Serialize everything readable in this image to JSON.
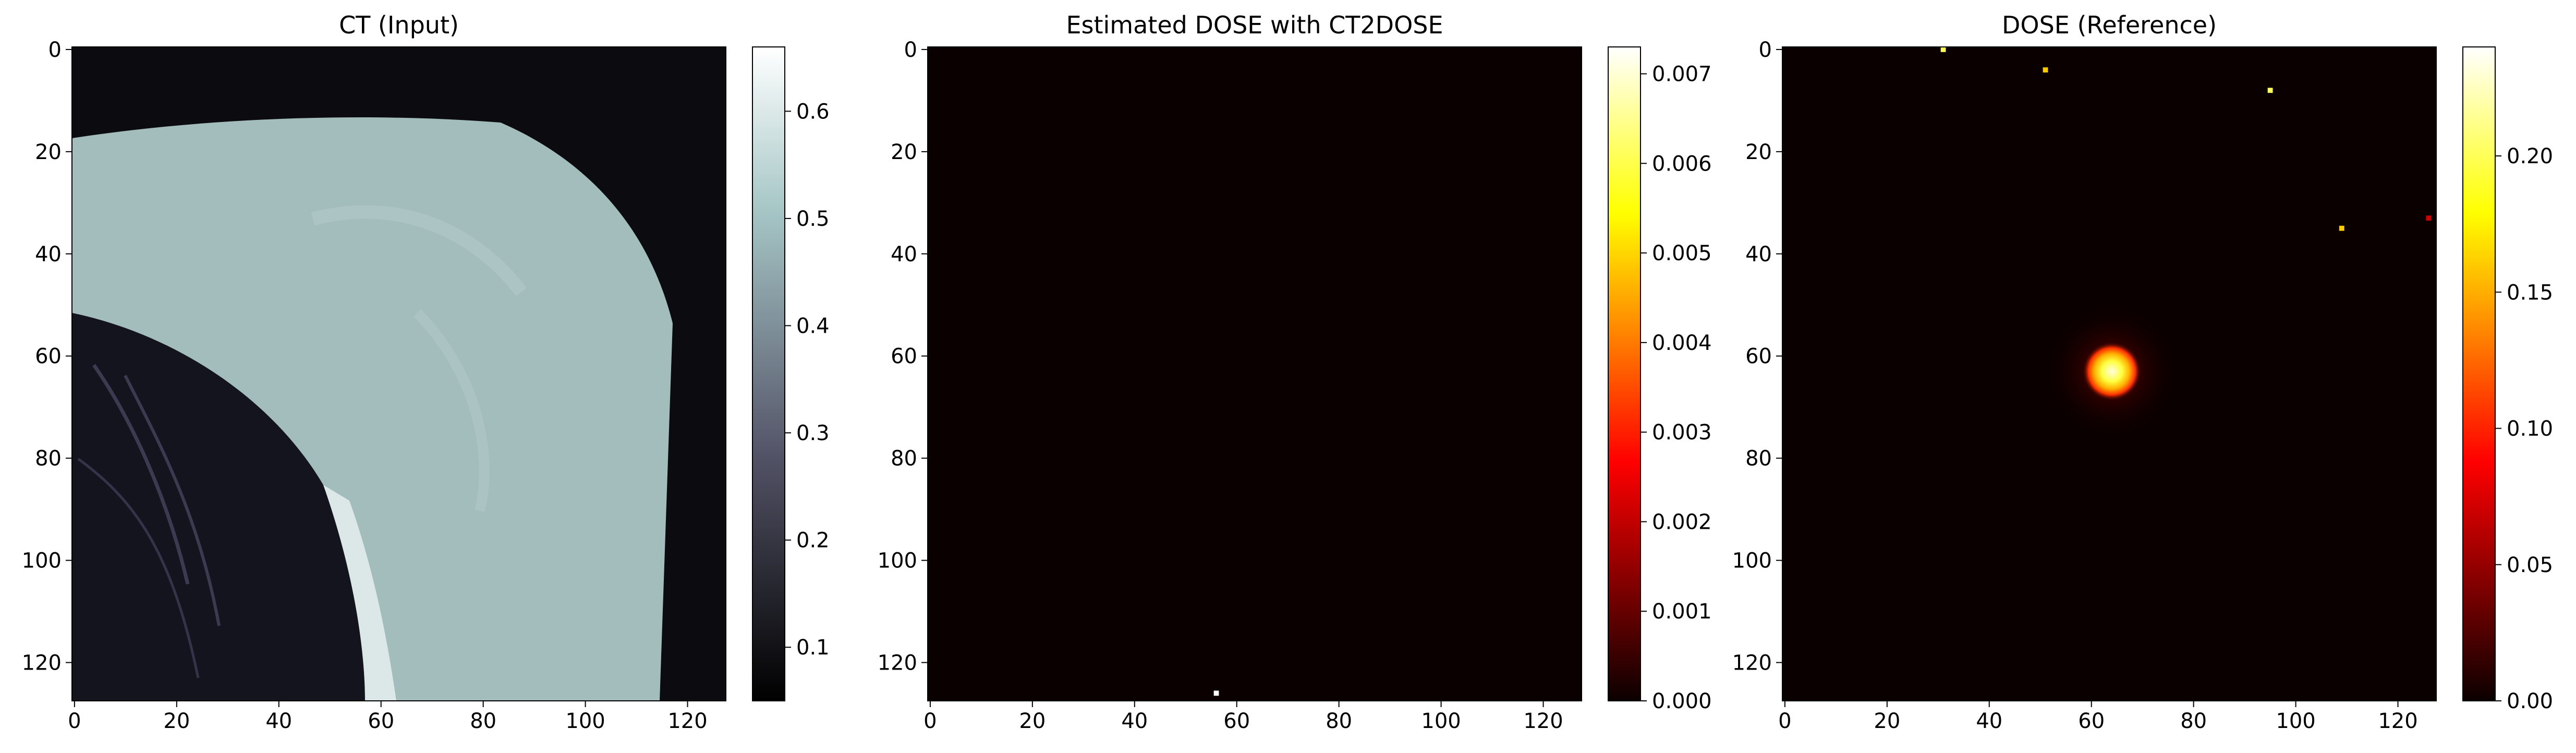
{
  "chart_data": [
    {
      "type": "heatmap",
      "title": "CT (Input)",
      "colormap": "bone",
      "xlim": [
        0,
        127
      ],
      "ylim": [
        127,
        0
      ],
      "xticks": [
        0,
        20,
        40,
        60,
        80,
        100,
        120
      ],
      "yticks": [
        0,
        20,
        40,
        60,
        80,
        100,
        120
      ],
      "colorbar": {
        "range": [
          0.05,
          0.66
        ],
        "ticks": [
          0.1,
          0.2,
          0.3,
          0.4,
          0.5,
          0.6
        ]
      },
      "image_description_values": {
        "background": 0.05,
        "tissue": 0.47,
        "lung": 0.1,
        "bone_rim": 0.62
      }
    },
    {
      "type": "heatmap",
      "title": "Estimated DOSE with CT2DOSE",
      "colormap": "hot",
      "xlim": [
        0,
        127
      ],
      "ylim": [
        127,
        0
      ],
      "xticks": [
        0,
        20,
        40,
        60,
        80,
        100,
        120
      ],
      "yticks": [
        0,
        20,
        40,
        60,
        80,
        100,
        120
      ],
      "colorbar": {
        "range": [
          0.0,
          0.0073
        ],
        "ticks": [
          "0.000",
          "0.001",
          "0.002",
          "0.003",
          "0.004",
          "0.005",
          "0.006",
          "0.007"
        ]
      },
      "points": [
        {
          "x": 56,
          "y": 126,
          "value": 0.0073
        }
      ]
    },
    {
      "type": "heatmap",
      "title": "DOSE (Reference)",
      "colormap": "hot",
      "xlim": [
        0,
        127
      ],
      "ylim": [
        127,
        0
      ],
      "xticks": [
        0,
        20,
        40,
        60,
        80,
        100,
        120
      ],
      "yticks": [
        0,
        20,
        40,
        60,
        80,
        100,
        120
      ],
      "colorbar": {
        "range": [
          0.0,
          0.24
        ],
        "ticks": [
          "0.00",
          "0.05",
          "0.10",
          "0.15",
          "0.20"
        ]
      },
      "hotspot": {
        "x": 64,
        "y": 63,
        "radius": 5,
        "peak": 0.24
      },
      "points": [
        {
          "x": 31,
          "y": 0,
          "value": 0.2
        },
        {
          "x": 51,
          "y": 4,
          "value": 0.16
        },
        {
          "x": 95,
          "y": 8,
          "value": 0.2
        },
        {
          "x": 109,
          "y": 35,
          "value": 0.16
        },
        {
          "x": 126,
          "y": 33,
          "value": 0.07
        }
      ]
    }
  ]
}
